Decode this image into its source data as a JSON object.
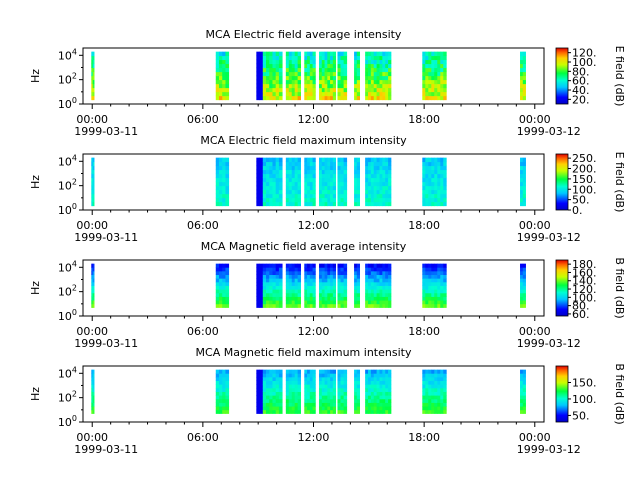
{
  "figure": {
    "x_ticks": [
      "00:00",
      "06:00",
      "12:00",
      "18:00",
      "00:00"
    ],
    "x_tick_hours": [
      0,
      6,
      12,
      18,
      24
    ],
    "date_start": "1999-03-11",
    "date_end": "1999-03-12"
  },
  "chart_data": [
    {
      "type": "heatmap",
      "title": "MCA  Electric field average intensity",
      "ylabel": "Hz",
      "y_scale": "log",
      "y_ticks": [
        "10^0",
        "10^2",
        "10^4"
      ],
      "xlim_hours": [
        -0.5,
        24.5
      ],
      "colorbar_label": "E field (dB)",
      "colorbar_ticks": [
        "20.",
        "40.",
        "60.",
        "80.",
        "100.",
        "120."
      ],
      "colorbar_range": [
        10,
        130
      ],
      "data_intervals_hours": [
        [
          -0.05,
          0.1
        ],
        [
          6.7,
          7.4
        ],
        [
          8.9,
          9.6
        ],
        [
          9.6,
          10.3
        ],
        [
          10.5,
          11.3
        ],
        [
          11.5,
          12.1
        ],
        [
          12.3,
          13.2
        ],
        [
          13.3,
          13.8
        ],
        [
          14.2,
          14.5
        ],
        [
          14.8,
          16.2
        ],
        [
          17.9,
          19.2
        ],
        [
          23.2,
          23.5
        ]
      ]
    },
    {
      "type": "heatmap",
      "title": "MCA  Electric field maximum intensity",
      "ylabel": "Hz",
      "y_scale": "log",
      "y_ticks": [
        "10^0",
        "10^2",
        "10^4"
      ],
      "xlim_hours": [
        -0.5,
        24.5
      ],
      "colorbar_label": "E field (dB)",
      "colorbar_ticks": [
        "0.",
        "50.",
        "100.",
        "150.",
        "200.",
        "250."
      ],
      "colorbar_range": [
        0,
        270
      ],
      "data_intervals_hours": [
        [
          -0.05,
          0.1
        ],
        [
          6.7,
          7.4
        ],
        [
          8.9,
          9.6
        ],
        [
          9.6,
          10.3
        ],
        [
          10.5,
          11.3
        ],
        [
          11.5,
          12.1
        ],
        [
          12.3,
          13.2
        ],
        [
          13.3,
          13.8
        ],
        [
          14.2,
          14.5
        ],
        [
          14.8,
          16.2
        ],
        [
          17.9,
          19.2
        ],
        [
          23.2,
          23.5
        ]
      ]
    },
    {
      "type": "heatmap",
      "title": "MCA  Magnetic field average intensity",
      "ylabel": "Hz",
      "y_scale": "log",
      "y_ticks": [
        "10^0",
        "10^2",
        "10^4"
      ],
      "xlim_hours": [
        -0.5,
        24.5
      ],
      "colorbar_label": "B field (dB)",
      "colorbar_ticks": [
        "60.",
        "80.",
        "100.",
        "120.",
        "140.",
        "160.",
        "180."
      ],
      "colorbar_range": [
        55,
        190
      ],
      "data_intervals_hours": [
        [
          -0.05,
          0.1
        ],
        [
          6.7,
          7.4
        ],
        [
          8.9,
          9.6
        ],
        [
          9.6,
          10.3
        ],
        [
          10.5,
          11.3
        ],
        [
          11.5,
          12.1
        ],
        [
          12.3,
          13.2
        ],
        [
          13.3,
          13.8
        ],
        [
          14.2,
          14.5
        ],
        [
          14.8,
          16.2
        ],
        [
          17.9,
          19.2
        ],
        [
          23.2,
          23.5
        ]
      ]
    },
    {
      "type": "heatmap",
      "title": "MCA  Magnetic field maximum intensity",
      "ylabel": "Hz",
      "y_scale": "log",
      "y_ticks": [
        "10^0",
        "10^2",
        "10^4"
      ],
      "xlim_hours": [
        -0.5,
        24.5
      ],
      "colorbar_label": "B field (dB)",
      "colorbar_ticks": [
        "50.",
        "100.",
        "150."
      ],
      "colorbar_range": [
        30,
        200
      ],
      "data_intervals_hours": [
        [
          -0.05,
          0.1
        ],
        [
          6.7,
          7.4
        ],
        [
          8.9,
          9.6
        ],
        [
          9.6,
          10.3
        ],
        [
          10.5,
          11.3
        ],
        [
          11.5,
          12.1
        ],
        [
          12.3,
          13.2
        ],
        [
          13.3,
          13.8
        ],
        [
          14.2,
          14.5
        ],
        [
          14.8,
          16.2
        ],
        [
          17.9,
          19.2
        ],
        [
          23.2,
          23.5
        ]
      ]
    }
  ]
}
